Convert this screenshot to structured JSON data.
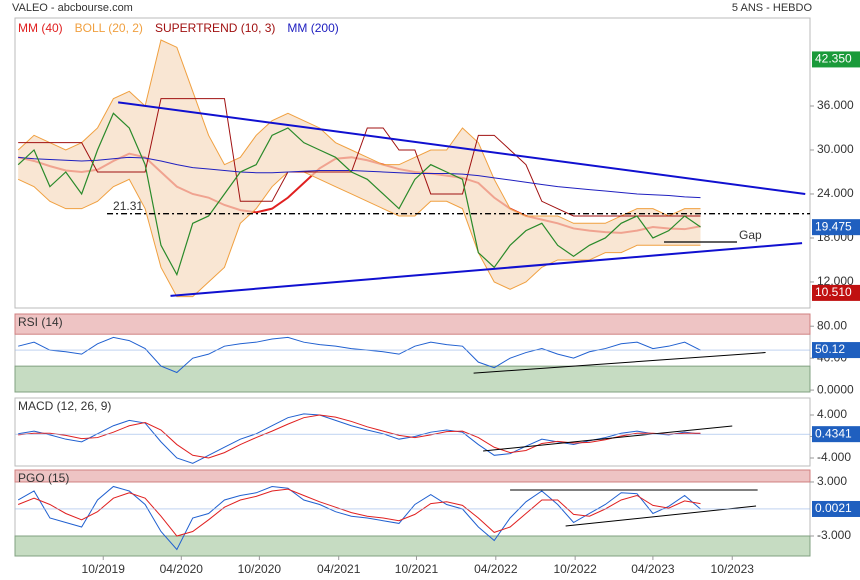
{
  "chart_data": [
    {
      "type": "line",
      "title": "VALEO - abcbourse.com",
      "subtitle": "5 ANS - HEBDO",
      "xlim": [
        -0.2,
        49.9
      ],
      "ylim": [
        8.45,
        48
      ],
      "yticks": [
        {
          "value": 12,
          "label": "12.000"
        },
        {
          "value": 18,
          "label": "18.000"
        },
        {
          "value": 24,
          "label": "24.000"
        },
        {
          "value": 30,
          "label": "30.000"
        },
        {
          "value": 36,
          "label": "36.000"
        }
      ],
      "series": [
        {
          "name": "MM (40)",
          "color": "#e02020",
          "values": [
            29,
            28.5,
            27.8,
            27.2,
            27,
            27.3,
            28.5,
            29.5,
            29,
            27,
            25,
            24,
            23.5,
            22.5,
            21.8,
            21.5,
            22,
            23.5,
            25.5,
            27.5,
            28.8,
            29,
            28.6,
            28,
            27.4,
            27,
            26.8,
            26.5,
            26.2,
            25.5,
            23.5,
            22,
            21,
            20.5,
            20,
            19.3,
            19,
            18.8,
            18.7,
            19,
            19.5,
            19.3,
            19.2,
            19.6
          ]
        },
        {
          "name": "BOLL (20, 2)",
          "color": "#f0a040",
          "upper": [
            30,
            32,
            31,
            30,
            31,
            33,
            37,
            38,
            36,
            45,
            44,
            38,
            32,
            28,
            29,
            32,
            34,
            35,
            34,
            33,
            31,
            30,
            29,
            28,
            28,
            29,
            30,
            30,
            33,
            31,
            26,
            22,
            21,
            21,
            21,
            20,
            20,
            20,
            21,
            22,
            22,
            21,
            22,
            22
          ],
          "lower": [
            26,
            25,
            23,
            22,
            22,
            23,
            25,
            26,
            22,
            14,
            10,
            10,
            12,
            14,
            20,
            22,
            25,
            27,
            27,
            26,
            25,
            24,
            23,
            22,
            21,
            21,
            23,
            23,
            22,
            16,
            12,
            11,
            12,
            14,
            15,
            15,
            15,
            16,
            16,
            17,
            17,
            17,
            17,
            17
          ]
        },
        {
          "name": "SUPERTREND (10, 3)",
          "color": "#a01010",
          "values": [
            31,
            31,
            31,
            31,
            31,
            27,
            27,
            27,
            27,
            37,
            37,
            37,
            37,
            37,
            23,
            23,
            23,
            27,
            27,
            27,
            27,
            27,
            33,
            33,
            30,
            30,
            24,
            24,
            24,
            32,
            32,
            30,
            28,
            23,
            22,
            21,
            21,
            21,
            21,
            21,
            21,
            21,
            21,
            21
          ]
        },
        {
          "name": "MM (200)",
          "color": "#2020c0",
          "values": [
            29,
            28.8,
            28.7,
            28.6,
            28.5,
            28.6,
            28.8,
            29,
            28.9,
            28.5,
            28,
            27.6,
            27.4,
            27.2,
            27,
            26.9,
            26.9,
            27,
            27.1,
            27.2,
            27.2,
            27.2,
            27.1,
            27,
            26.9,
            26.8,
            26.8,
            26.8,
            26.7,
            26.5,
            26.2,
            25.9,
            25.6,
            25.3,
            25,
            24.8,
            24.6,
            24.4,
            24.2,
            24,
            23.9,
            23.8,
            23.6,
            23.5
          ]
        },
        {
          "color": "#2a8a2a",
          "values": [
            28,
            30,
            25,
            27,
            24,
            30,
            35,
            33,
            28,
            17,
            13,
            20,
            21,
            24,
            27,
            28,
            32,
            33,
            31,
            30,
            29,
            27,
            26,
            24,
            22,
            26,
            28,
            27,
            26,
            16,
            14,
            17,
            19,
            20,
            17,
            15.5,
            17,
            18,
            20,
            21,
            18,
            19,
            21,
            19.5
          ]
        }
      ],
      "trendlines": [
        {
          "color": "#1010d0",
          "x": [
            6.3,
            49.6
          ],
          "y": [
            36.5,
            24.0
          ]
        },
        {
          "color": "#1010d0",
          "x": [
            9.6,
            49.4
          ],
          "y": [
            10.1,
            17.3
          ]
        }
      ],
      "hlines": [
        {
          "value": 21.31,
          "from": 5.6
        },
        {
          "value": 17.45,
          "from": 40.7,
          "to": 45.3,
          "label": "Gap"
        }
      ],
      "markers": [
        {
          "value": 42.35,
          "label": "42.350",
          "color": "#1a9a3a"
        },
        {
          "value": 19.475,
          "label": "19.475",
          "color": "#1f5fbf"
        },
        {
          "value": 10.51,
          "label": "10.510",
          "color": "#c01010"
        }
      ]
    },
    {
      "type": "line",
      "title": "RSI (14)",
      "xlim": [
        -0.2,
        49.9
      ],
      "ylim": [
        -2.4,
        95.3
      ],
      "yticks": [
        {
          "value": 80,
          "label": "80.00"
        },
        {
          "value": 40,
          "label": "40.00"
        },
        {
          "value": 0,
          "label": "0.0000"
        }
      ],
      "overbought": 70,
      "oversold": 30,
      "series": [
        {
          "color": "#2060d0",
          "values": [
            55,
            60,
            50,
            48,
            45,
            58,
            66,
            62,
            52,
            30,
            22,
            40,
            45,
            55,
            58,
            60,
            64,
            66,
            60,
            57,
            55,
            52,
            50,
            48,
            45,
            55,
            60,
            57,
            55,
            35,
            28,
            40,
            47,
            52,
            45,
            40,
            48,
            52,
            58,
            60,
            52,
            55,
            60,
            50
          ]
        }
      ],
      "trendlines": [
        {
          "color": "#000000",
          "x": [
            28.7,
            47.1
          ],
          "y": [
            21.2,
            47
          ]
        }
      ],
      "markers": [
        {
          "value": 50.12,
          "label": "50.12",
          "color": "#1f5fbf"
        }
      ]
    },
    {
      "type": "line",
      "title": "MACD (12, 26, 9)",
      "xlim": [
        -0.2,
        49.9
      ],
      "ylim": [
        -5.49,
        7.16
      ],
      "yticks": [
        {
          "value": 4,
          "label": "4.000"
        },
        {
          "value": 0,
          "label": "0.0000"
        },
        {
          "value": -4,
          "label": "-4.000"
        }
      ],
      "series": [
        {
          "color": "#2060d0",
          "values": [
            0.5,
            1,
            0.3,
            -0.5,
            -1,
            0.5,
            2,
            3,
            2.5,
            -1,
            -4,
            -5,
            -3.5,
            -2,
            -0.5,
            0.5,
            2,
            3.5,
            4.2,
            4,
            3,
            2,
            1.2,
            0.5,
            -0.5,
            0,
            0.8,
            1.2,
            0.8,
            -1.5,
            -3.5,
            -3.2,
            -1.8,
            -0.5,
            -1,
            -1.5,
            -0.8,
            -0.2,
            0.6,
            1,
            0.5,
            0.3,
            0.8,
            0.43
          ]
        },
        {
          "color": "#e02020",
          "values": [
            0.3,
            0.6,
            0.6,
            0.2,
            -0.4,
            -0.2,
            0.8,
            2,
            2.6,
            1.2,
            -1.5,
            -3.5,
            -4,
            -3,
            -1.5,
            -0.2,
            1,
            2.3,
            3.5,
            4,
            3.6,
            2.8,
            1.8,
            1,
            0.2,
            -0.2,
            0.3,
            0.9,
            1,
            -0.2,
            -2,
            -3,
            -2.6,
            -1.3,
            -0.9,
            -1.2,
            -1.1,
            -0.6,
            0.1,
            0.6,
            0.6,
            0.4,
            0.6,
            0.6
          ]
        }
      ],
      "trendlines": [
        {
          "color": "#000000",
          "x": [
            29.3,
            45.0
          ],
          "y": [
            -2.7,
            1.95
          ]
        }
      ],
      "markers": [
        {
          "value": 0.4341,
          "label": "0.4341",
          "color": "#1f5fbf"
        }
      ]
    },
    {
      "type": "line",
      "title": "PGO (15)",
      "xlim": [
        -0.2,
        49.9
      ],
      "ylim": [
        -5.22,
        4.33
      ],
      "yticks": [
        {
          "value": 3,
          "label": "3.000"
        },
        {
          "value": -3,
          "label": "-3.000"
        }
      ],
      "overbought": 3,
      "oversold": -3,
      "xticks": [
        {
          "value": 5.36,
          "label": "10/2019"
        },
        {
          "value": 10.28,
          "label": "04/2020"
        },
        {
          "value": 15.2,
          "label": "10/2020"
        },
        {
          "value": 20.2,
          "label": "04/2021"
        },
        {
          "value": 25.1,
          "label": "10/2021"
        },
        {
          "value": 30.1,
          "label": "04/2022"
        },
        {
          "value": 35.1,
          "label": "10/2022"
        },
        {
          "value": 40.0,
          "label": "04/2023"
        },
        {
          "value": 45.0,
          "label": "10/2023"
        }
      ],
      "series": [
        {
          "color": "#2060d0",
          "values": [
            1,
            2,
            -1,
            -1.5,
            -2,
            1,
            2.5,
            2,
            0.5,
            -2.5,
            -4.5,
            -1,
            -0.5,
            1,
            1.5,
            1.8,
            2.5,
            2.3,
            1,
            0.5,
            -0.3,
            -0.8,
            -1,
            -1.3,
            -1.6,
            0.5,
            1.6,
            0.5,
            0,
            -2,
            -3.5,
            -1,
            0.8,
            2,
            0.5,
            -1.5,
            -0.5,
            0.5,
            1.8,
            1.7,
            -0.5,
            0.3,
            1.5,
            0
          ]
        },
        {
          "color": "#e02020",
          "values": [
            0.5,
            1.2,
            0.5,
            -0.5,
            -1.2,
            -0.3,
            1.2,
            1.8,
            1.2,
            -0.8,
            -3,
            -2.5,
            -1.2,
            0.2,
            1,
            1.4,
            2,
            2.2,
            1.5,
            0.8,
            0.2,
            -0.4,
            -0.8,
            -1,
            -1.3,
            -0.6,
            0.6,
            0.8,
            0.4,
            -1,
            -2.6,
            -2,
            -0.5,
            1,
            1,
            -0.6,
            -0.8,
            0,
            1,
            1.5,
            0.4,
            0.1,
            0.9,
            0.6
          ]
        }
      ],
      "trendlines": [
        {
          "color": "#000000",
          "x": [
            31.0,
            46.6
          ],
          "y": [
            2.11,
            2.11
          ]
        },
        {
          "color": "#000000",
          "x": [
            34.5,
            46.5
          ],
          "y": [
            -1.89,
            0.33
          ]
        }
      ],
      "markers": [
        {
          "value": 0.0021,
          "label": "0.0021",
          "color": "#1f5fbf"
        }
      ]
    }
  ]
}
